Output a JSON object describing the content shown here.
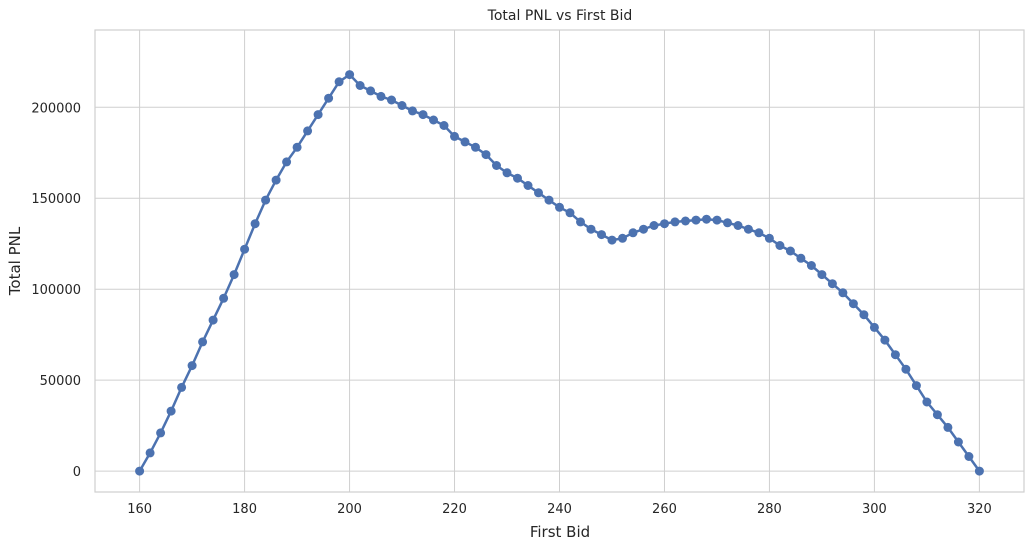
{
  "chart_data": {
    "type": "line",
    "title": "Total PNL vs First Bid",
    "xlabel": "First Bid",
    "ylabel": "Total PNL",
    "xlim": [
      151.5,
      328.5
    ],
    "ylim": [
      -11500,
      242500
    ],
    "xticks": [
      160,
      180,
      200,
      220,
      240,
      260,
      280,
      300,
      320
    ],
    "yticks": [
      0,
      50000,
      100000,
      150000,
      200000
    ],
    "grid": true,
    "markers": true,
    "series": [
      {
        "color": "#4c72b0",
        "x": [
          160,
          162,
          164,
          166,
          168,
          170,
          172,
          174,
          176,
          178,
          180,
          182,
          184,
          186,
          188,
          190,
          192,
          194,
          196,
          198,
          200,
          202,
          204,
          206,
          208,
          210,
          212,
          214,
          216,
          218,
          220,
          222,
          224,
          226,
          228,
          230,
          232,
          234,
          236,
          238,
          240,
          242,
          244,
          246,
          248,
          250,
          252,
          254,
          256,
          258,
          260,
          262,
          264,
          266,
          268,
          270,
          272,
          274,
          276,
          278,
          280,
          282,
          284,
          286,
          288,
          290,
          292,
          294,
          296,
          298,
          300,
          302,
          304,
          306,
          308,
          310,
          312,
          314,
          316,
          318,
          320
        ],
        "y": [
          0,
          10000,
          21000,
          33000,
          46000,
          58000,
          71000,
          83000,
          95000,
          108000,
          122000,
          136000,
          149000,
          160000,
          170000,
          178000,
          187000,
          196000,
          205000,
          214000,
          218000,
          212000,
          209000,
          206000,
          204000,
          201000,
          198000,
          196000,
          193000,
          190000,
          184000,
          181000,
          178000,
          174000,
          168000,
          164000,
          161000,
          157000,
          153000,
          149000,
          145000,
          142000,
          137000,
          133000,
          130000,
          127000,
          128000,
          131000,
          133000,
          135000,
          136000,
          137000,
          137500,
          138000,
          138500,
          138000,
          136500,
          135000,
          133000,
          131000,
          128000,
          124000,
          121000,
          117000,
          113000,
          108000,
          103000,
          98000,
          92000,
          86000,
          79000,
          72000,
          64000,
          56000,
          47000,
          38000,
          31000,
          24000,
          16000,
          8000,
          0
        ]
      }
    ]
  }
}
